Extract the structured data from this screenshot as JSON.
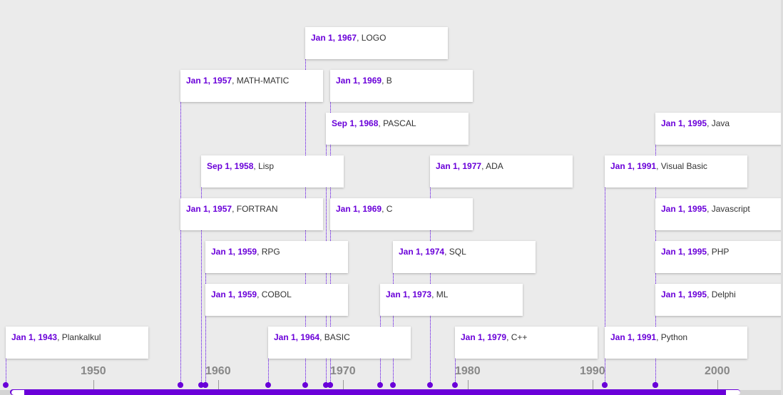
{
  "colors": {
    "accent": "#6a00d9",
    "background": "#ebebeb",
    "card": "#ffffff"
  },
  "axis": {
    "start_year": 1942.2,
    "end_year": 2012.3,
    "labels": [
      "1950",
      "1960",
      "1970",
      "1980",
      "1990",
      "2000"
    ]
  },
  "events": [
    {
      "date": "Jan 1, 1967",
      "name": "LOGO",
      "year": 1967.0,
      "row": 0
    },
    {
      "date": "Jan 1, 1957",
      "name": "MATH-MATIC",
      "year": 1957.0,
      "row": 1
    },
    {
      "date": "Jan 1, 1969",
      "name": "B",
      "year": 1969.0,
      "row": 1
    },
    {
      "date": "Sep 1, 1968",
      "name": "PASCAL",
      "year": 1968.67,
      "row": 2
    },
    {
      "date": "Jan 1, 1995",
      "name": "Java",
      "year": 1995.0,
      "row": 2
    },
    {
      "date": "Sep 1, 1958",
      "name": "Lisp",
      "year": 1958.67,
      "row": 3
    },
    {
      "date": "Jan 1, 1977",
      "name": "ADA",
      "year": 1977.0,
      "row": 3
    },
    {
      "date": "Jan 1, 1991",
      "name": "Visual Basic",
      "year": 1991.0,
      "row": 3
    },
    {
      "date": "Jan 1, 1957",
      "name": "FORTRAN",
      "year": 1957.0,
      "row": 4
    },
    {
      "date": "Jan 1, 1969",
      "name": "C",
      "year": 1969.0,
      "row": 4
    },
    {
      "date": "Jan 1, 1995",
      "name": "Javascript",
      "year": 1995.0,
      "row": 4
    },
    {
      "date": "Jan 1, 1959",
      "name": "RPG",
      "year": 1959.0,
      "row": 5
    },
    {
      "date": "Jan 1, 1974",
      "name": "SQL",
      "year": 1974.0,
      "row": 5
    },
    {
      "date": "Jan 1, 1995",
      "name": "PHP",
      "year": 1995.0,
      "row": 5
    },
    {
      "date": "Jan 1, 1959",
      "name": "COBOL",
      "year": 1959.0,
      "row": 6
    },
    {
      "date": "Jan 1, 1973",
      "name": "ML",
      "year": 1973.0,
      "row": 6
    },
    {
      "date": "Jan 1, 1995",
      "name": "Delphi",
      "year": 1995.0,
      "row": 6
    },
    {
      "date": "Jan 1, 1943",
      "name": "Plankalkul",
      "year": 1943.0,
      "row": 7
    },
    {
      "date": "Jan 1, 1964",
      "name": "BASIC",
      "year": 1964.0,
      "row": 7
    },
    {
      "date": "Jan 1, 1979",
      "name": "C++",
      "year": 1979.0,
      "row": 7
    },
    {
      "date": "Jan 1, 1991",
      "name": "Python",
      "year": 1991.0,
      "row": 7
    }
  ]
}
